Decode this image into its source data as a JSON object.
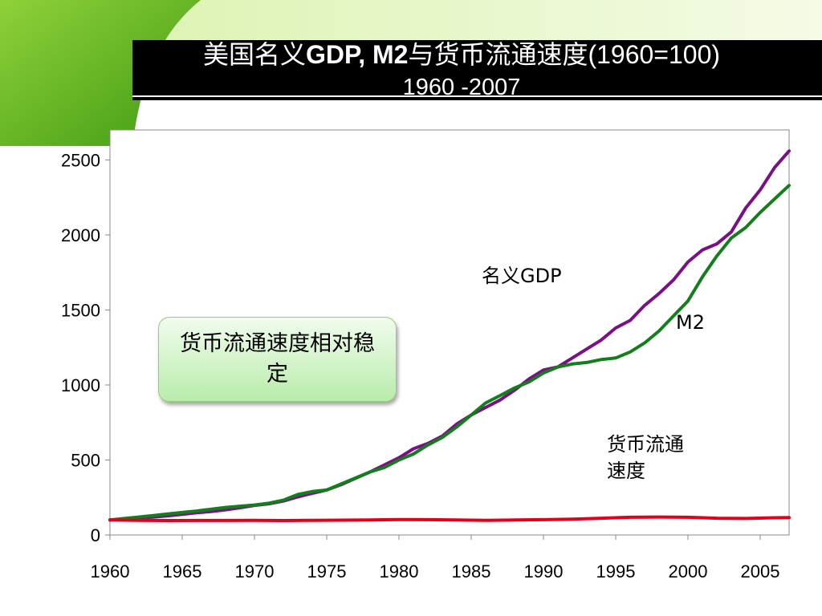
{
  "title": {
    "line1_cn_a": "美国名义",
    "line1_bold": "GDP, M2",
    "line1_cn_b": "与货币流通速度",
    "line1_tail": "(1960=100)",
    "line2": "1960 -2007"
  },
  "callout": {
    "text": "货币流通速度相对稳定"
  },
  "colors": {
    "gdp": "#7a0f86",
    "m2": "#127f1c",
    "velocity": "#e3001b",
    "title_bar": "#000000",
    "leaf": "#6cbf2a"
  },
  "chart_data": {
    "type": "line",
    "xlim": [
      1960,
      2007
    ],
    "ylim": [
      0,
      2700
    ],
    "x_ticks": [
      1960,
      1965,
      1970,
      1975,
      1980,
      1985,
      1990,
      1995,
      2000,
      2005
    ],
    "y_ticks": [
      0,
      500,
      1000,
      1500,
      2000,
      2500
    ],
    "grid": false,
    "legend": "inline labels",
    "series": [
      {
        "name": "名义GDP",
        "label_lines": [
          "名义GDP"
        ],
        "color": "#7a0f86",
        "x": [
          1960,
          1961,
          1962,
          1963,
          1964,
          1965,
          1966,
          1967,
          1968,
          1969,
          1970,
          1971,
          1972,
          1973,
          1974,
          1975,
          1976,
          1977,
          1978,
          1979,
          1980,
          1981,
          1982,
          1983,
          1984,
          1985,
          1986,
          1987,
          1988,
          1989,
          1990,
          1991,
          1992,
          1993,
          1994,
          1995,
          1996,
          1997,
          1998,
          1999,
          2000,
          2001,
          2002,
          2003,
          2004,
          2005,
          2006,
          2007
        ],
        "values": [
          100,
          106,
          113,
          120,
          128,
          138,
          148,
          156,
          168,
          182,
          197,
          208,
          226,
          254,
          278,
          300,
          335,
          378,
          420,
          468,
          515,
          575,
          610,
          660,
          740,
          800,
          850,
          900,
          965,
          1040,
          1100,
          1120,
          1180,
          1240,
          1300,
          1380,
          1430,
          1530,
          1610,
          1700,
          1820,
          1900,
          1940,
          2020,
          2180,
          2300,
          2450,
          2560
        ]
      },
      {
        "name": "M2",
        "label_lines": [
          "M2"
        ],
        "color": "#127f1c",
        "x": [
          1960,
          1961,
          1962,
          1963,
          1964,
          1965,
          1966,
          1967,
          1968,
          1969,
          1970,
          1971,
          1972,
          1973,
          1974,
          1975,
          1976,
          1977,
          1978,
          1979,
          1980,
          1981,
          1982,
          1983,
          1984,
          1985,
          1986,
          1987,
          1988,
          1989,
          1990,
          1991,
          1992,
          1993,
          1994,
          1995,
          1996,
          1997,
          1998,
          1999,
          2000,
          2001,
          2002,
          2003,
          2004,
          2005,
          2006,
          2007
        ],
        "values": [
          100,
          110,
          120,
          130,
          140,
          150,
          160,
          172,
          184,
          192,
          200,
          212,
          232,
          270,
          290,
          300,
          340,
          380,
          420,
          450,
          500,
          540,
          600,
          650,
          720,
          800,
          880,
          930,
          980,
          1020,
          1080,
          1120,
          1140,
          1150,
          1170,
          1180,
          1220,
          1280,
          1360,
          1460,
          1560,
          1720,
          1860,
          1980,
          2050,
          2150,
          2240,
          2330
        ]
      },
      {
        "name": "货币流通速度",
        "label_lines": [
          "货币流通",
          "速度"
        ],
        "color": "#e3001b",
        "x": [
          1960,
          1962,
          1964,
          1966,
          1968,
          1970,
          1972,
          1974,
          1976,
          1978,
          1980,
          1982,
          1984,
          1986,
          1988,
          1990,
          1992,
          1994,
          1996,
          1998,
          2000,
          2002,
          2004,
          2006,
          2007
        ],
        "values": [
          100,
          98,
          96,
          97,
          97,
          98,
          96,
          98,
          99,
          100,
          103,
          102,
          100,
          98,
          100,
          102,
          106,
          112,
          118,
          120,
          118,
          112,
          110,
          115,
          116
        ]
      }
    ]
  }
}
